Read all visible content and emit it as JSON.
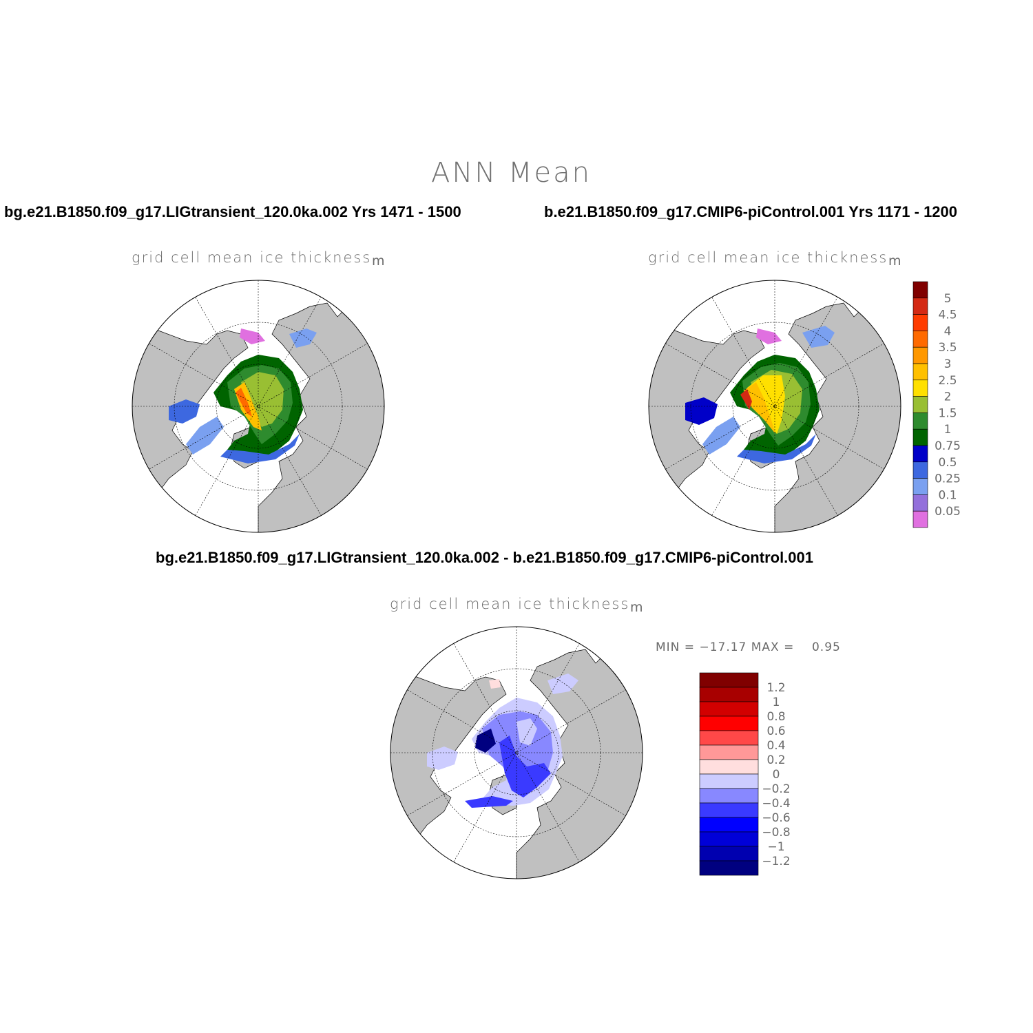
{
  "title": "ANN Mean",
  "panels": [
    {
      "case_title": "bg.e21.B1850.f09_g17.LIGtransient_120.0ka.002  Yrs 1471 - 1500",
      "variable": "grid cell mean ice thickness",
      "units": "m"
    },
    {
      "case_title": "b.e21.B1850.f09_g17.CMIP6-piControl.001  Yrs 1171 - 1200",
      "variable": "grid cell mean ice thickness",
      "units": "m"
    },
    {
      "case_title": "bg.e21.B1850.f09_g17.LIGtransient_120.0ka.002 - b.e21.B1850.f09_g17.CMIP6-piControl.001",
      "variable": "grid cell mean ice thickness",
      "units": "m",
      "minmax": "MIN = −17.17 MAX =    0.95"
    }
  ],
  "colorbar_thickness": {
    "labels": [
      "5",
      "4.5",
      "4",
      "3.5",
      "3",
      "2.5",
      "2",
      "1.5",
      "1",
      "0.75",
      "0.5",
      "0.25",
      "0.1",
      "0.05"
    ],
    "colors": [
      "#800000",
      "#d42a14",
      "#ff3c00",
      "#ff6a00",
      "#ff9800",
      "#ffc000",
      "#ffe000",
      "#99bf33",
      "#2e8b2e",
      "#006400",
      "#0000c8",
      "#3d68e0",
      "#7aa0f0",
      "#9370db",
      "#e070e0"
    ]
  },
  "colorbar_diff": {
    "labels": [
      "1.2",
      "1",
      "0.8",
      "0.6",
      "0.4",
      "0.2",
      "0",
      "−0.2",
      "−0.4",
      "−0.6",
      "−0.8",
      "−1",
      "−1.2"
    ],
    "colors": [
      "#800000",
      "#a80000",
      "#d20000",
      "#ff0000",
      "#ff4848",
      "#ff9898",
      "#ffdede",
      "#ccccff",
      "#8888ff",
      "#3a3aff",
      "#0000ff",
      "#0000d8",
      "#0000b0",
      "#000080"
    ]
  },
  "colors": {
    "land": "#c0c0c0",
    "ocean": "#ffffff",
    "graticule": "#000000"
  }
}
